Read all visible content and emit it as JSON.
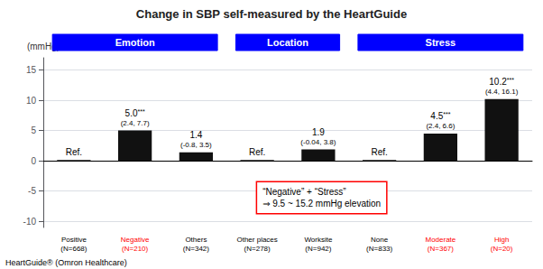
{
  "chart_data": {
    "type": "bar",
    "title": "Change in SBP self-measured by the HeartGuide",
    "y_label": "(mmHg)",
    "categories": [
      "Positive\n(N=668)",
      "Negative\n(N=210)",
      "Others\n(N=342)",
      "Other places\n(N=278)",
      "Worksite\n(N=942)",
      "None\n(N=833)",
      "Moderate\n(N=367)",
      "High\n(N=20)"
    ],
    "values": [
      0.15,
      5.0,
      1.4,
      0.15,
      1.9,
      0.15,
      4.5,
      10.2
    ],
    "value_labels": [
      "Ref.",
      "5.0",
      "1.4",
      "Ref.",
      "1.9",
      "Ref.",
      "4.5",
      "10.2"
    ],
    "stars": [
      null,
      "***",
      null,
      null,
      null,
      null,
      "***",
      "***"
    ],
    "ci_labels": [
      null,
      "(2.4, 7.7)",
      "(-0.8, 3.5)",
      null,
      "(-0.04, 3.8)",
      null,
      "(2.4, 6.6)",
      "(4.4, 16.1)"
    ],
    "color": "#111111",
    "category_colors": [
      "black",
      "red",
      "black",
      "black",
      "black",
      "black",
      "red",
      "red"
    ],
    "groups": [
      {
        "name": "Emotion",
        "size": 3,
        "color": "blue"
      },
      {
        "name": "Location",
        "size": 2,
        "color": "blue"
      },
      {
        "name": "Stress",
        "size": 3,
        "color": "blue"
      }
    ],
    "annotation": {
      "text": "“Negative” + “Stress”\n⇒ 9.5 ~ 15.2 mmHg elevation",
      "color": "red"
    },
    "caption": "HeartGuide® (Omron Healthcare)",
    "ylim": [
      -11,
      17
    ],
    "yticks": [
      -10,
      -5,
      0,
      5,
      10,
      15
    ],
    "grid": true,
    "data_labels": true
  }
}
